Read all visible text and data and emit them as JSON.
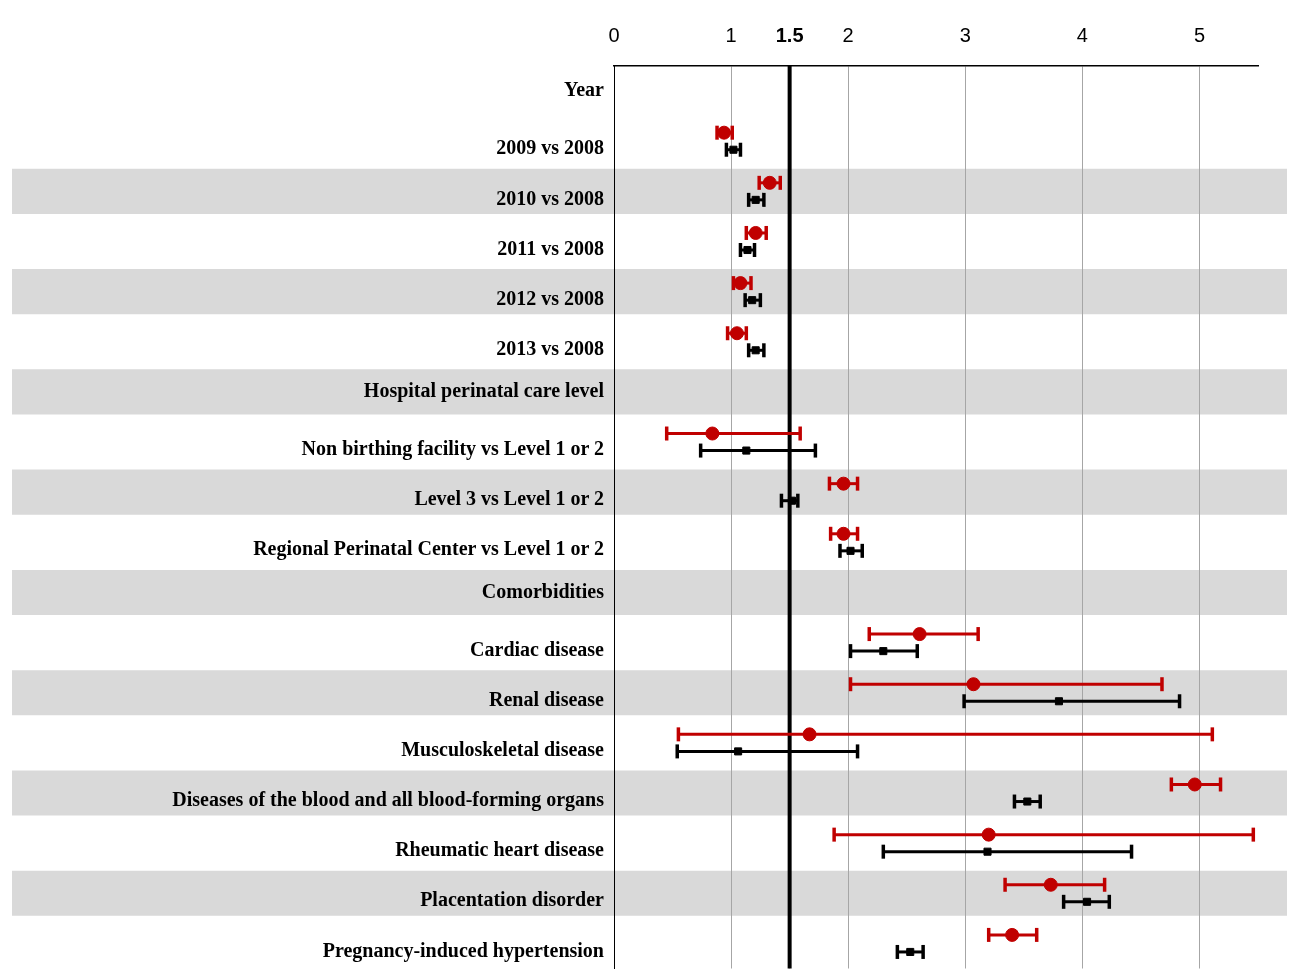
{
  "chart_data": {
    "type": "scatter",
    "orientation": "horizontal",
    "categories": [
      "Year",
      "2009 vs 2008",
      "2010 vs 2008",
      "2011 vs 2008",
      "2012 vs 2008",
      "2013 vs 2008",
      "Hospital perinatal care level",
      "Non birthing facility vs Level 1 or 2",
      "Level 3 vs Level 1 or 2",
      "Regional Perinatal Center vs Level 1 or 2",
      "Comorbidities",
      "Cardiac disease",
      "Renal disease",
      "Musculoskeletal disease",
      "Diseases of the blood and all blood-forming organs",
      "Rheumatic heart disease",
      "Placentation disorder",
      "Pregnancy-induced hypertension"
    ],
    "series": [
      {
        "color": "#c00000",
        "marker": "circle",
        "values": [
          null,
          0.94,
          1.33,
          1.21,
          1.08,
          1.05,
          null,
          0.84,
          1.96,
          1.96,
          null,
          2.61,
          3.07,
          1.67,
          4.96,
          3.2,
          3.73,
          3.4
        ],
        "errors": [
          null,
          [
            0.88,
            1.01
          ],
          [
            1.24,
            1.42
          ],
          [
            1.13,
            1.3
          ],
          [
            1.02,
            1.17
          ],
          [
            0.97,
            1.13
          ],
          null,
          [
            0.45,
            1.59
          ],
          [
            1.84,
            2.08
          ],
          [
            1.85,
            2.08
          ],
          null,
          [
            2.18,
            3.11
          ],
          [
            2.02,
            4.68
          ],
          [
            0.55,
            5.11
          ],
          [
            4.76,
            5.18
          ],
          [
            1.88,
            5.46
          ],
          [
            3.34,
            4.19
          ],
          [
            3.2,
            3.61
          ]
        ]
      },
      {
        "color": "#000000",
        "marker": "square",
        "values": [
          null,
          1.02,
          1.21,
          1.14,
          1.18,
          1.21,
          null,
          1.13,
          1.52,
          2.02,
          null,
          2.3,
          3.8,
          1.06,
          3.53,
          3.19,
          4.04,
          2.53
        ],
        "errors": [
          null,
          [
            0.96,
            1.08
          ],
          [
            1.15,
            1.28
          ],
          [
            1.08,
            1.2
          ],
          [
            1.12,
            1.25
          ],
          [
            1.15,
            1.28
          ],
          null,
          [
            0.74,
            1.72
          ],
          [
            1.43,
            1.57
          ],
          [
            1.93,
            2.12
          ],
          null,
          [
            2.02,
            2.59
          ],
          [
            2.99,
            4.83
          ],
          [
            0.54,
            2.08
          ],
          [
            3.42,
            3.64
          ],
          [
            2.3,
            4.42
          ],
          [
            3.84,
            4.23
          ],
          [
            2.42,
            2.64
          ]
        ]
      }
    ],
    "xlim": [
      0,
      5.5
    ],
    "xticks": [
      0,
      1,
      1.5,
      2,
      3,
      4,
      5
    ],
    "grid": "x",
    "legend": false,
    "ref_lines": [
      {
        "axis": "x",
        "value": 1.5,
        "color": "#000000"
      }
    ],
    "bands": [
      {
        "axis": "y",
        "from": "2010 vs 2008",
        "to": "2010 vs 2008",
        "color": "#d9d9d9"
      },
      {
        "axis": "y",
        "from": "2012 vs 2008",
        "to": "2012 vs 2008",
        "color": "#d9d9d9"
      },
      {
        "axis": "y",
        "from": "Hospital perinatal care level",
        "to": "Hospital perinatal care level",
        "color": "#d9d9d9"
      },
      {
        "axis": "y",
        "from": "Level 3 vs Level 1 or 2",
        "to": "Level 3 vs Level 1 or 2",
        "color": "#d9d9d9"
      },
      {
        "axis": "y",
        "from": "Comorbidities",
        "to": "Comorbidities",
        "color": "#d9d9d9"
      },
      {
        "axis": "y",
        "from": "Renal disease",
        "to": "Renal disease",
        "color": "#d9d9d9"
      },
      {
        "axis": "y",
        "from": "Diseases of the blood and all blood-forming organs",
        "to": "Diseases of the blood and all blood-forming organs",
        "color": "#d9d9d9"
      },
      {
        "axis": "y",
        "from": "Placentation disorder",
        "to": "Placentation disorder",
        "color": "#d9d9d9"
      }
    ]
  }
}
